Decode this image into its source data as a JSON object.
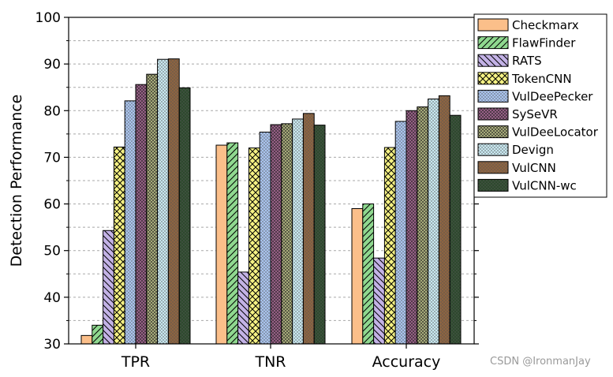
{
  "chart_data": {
    "type": "bar",
    "title": "",
    "xlabel": "",
    "ylabel": "Detection Performance",
    "ylim": [
      30,
      100
    ],
    "yticks": [
      30,
      40,
      50,
      60,
      70,
      80,
      90,
      100
    ],
    "grid": "horizontal-dashed",
    "legend_position": "right",
    "categories": [
      "TPR",
      "TNR",
      "Accuracy"
    ],
    "series": [
      {
        "name": "Checkmarx",
        "values": [
          31.8,
          72.6,
          59.0
        ],
        "color": "#fbbf8a",
        "pattern": "solid"
      },
      {
        "name": "FlawFinder",
        "values": [
          34.0,
          73.1,
          60.0
        ],
        "color": "#8fd88f",
        "pattern": "diag-right"
      },
      {
        "name": "RATS",
        "values": [
          54.3,
          45.4,
          48.4
        ],
        "color": "#c3b2e6",
        "pattern": "diag-left"
      },
      {
        "name": "TokenCNN",
        "values": [
          72.2,
          72.0,
          72.1
        ],
        "color": "#f6f284",
        "pattern": "crosshatch"
      },
      {
        "name": "VulDeePecker",
        "values": [
          82.1,
          75.4,
          77.7
        ],
        "color": "#a9c4ee",
        "pattern": "dots"
      },
      {
        "name": "SySeVR",
        "values": [
          85.6,
          77.0,
          80.0
        ],
        "color": "#a0648e",
        "pattern": "dense-cross"
      },
      {
        "name": "VulDeeLocator",
        "values": [
          87.8,
          77.2,
          80.8
        ],
        "color": "#b2b681",
        "pattern": "dense-cross"
      },
      {
        "name": "Devign",
        "values": [
          91.0,
          78.2,
          82.5
        ],
        "color": "#c8e8f0",
        "pattern": "dots"
      },
      {
        "name": "VulCNN",
        "values": [
          91.1,
          79.4,
          83.2
        ],
        "color": "#8e6440",
        "pattern": "dots"
      },
      {
        "name": "VulCNN-wc",
        "values": [
          84.9,
          76.9,
          79.0
        ],
        "color": "#2d4a2d",
        "pattern": "dots"
      }
    ]
  },
  "watermark": "CSDN @IronmanJay"
}
